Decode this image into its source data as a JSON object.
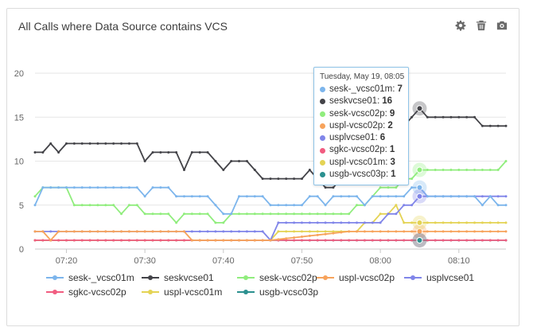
{
  "panel": {
    "title": "All Calls where Data Source contains VCS",
    "tools": [
      {
        "name": "gear-icon",
        "label": "settings"
      },
      {
        "name": "trash-icon",
        "label": "delete"
      },
      {
        "name": "camera-icon",
        "label": "snapshot"
      }
    ]
  },
  "tooltip": {
    "header": "Tuesday, May 19, 08:05",
    "rows": [
      {
        "name": "sesk-_vcsc01m:",
        "value": "7",
        "color": "#7cb5ec"
      },
      {
        "name": "seskvcse01:",
        "value": "16",
        "color": "#434348"
      },
      {
        "name": "sesk-vcsc02p:",
        "value": "9",
        "color": "#90ed7d"
      },
      {
        "name": "uspl-vcsc02p:",
        "value": "2",
        "color": "#f7a35c"
      },
      {
        "name": "usplvcse01:",
        "value": "6",
        "color": "#8085e9"
      },
      {
        "name": "sgkc-vcsc02p:",
        "value": "1",
        "color": "#f15c80"
      },
      {
        "name": "uspl-vcsc01m:",
        "value": "3",
        "color": "#e4d354"
      },
      {
        "name": "usgb-vcsc03p:",
        "value": "1",
        "color": "#2b908f"
      }
    ]
  },
  "chart_data": {
    "type": "line",
    "x": [
      "07:16",
      "07:17",
      "07:18",
      "07:19",
      "07:20",
      "07:21",
      "07:22",
      "07:23",
      "07:24",
      "07:25",
      "07:26",
      "07:27",
      "07:28",
      "07:29",
      "07:30",
      "07:31",
      "07:32",
      "07:33",
      "07:34",
      "07:35",
      "07:36",
      "07:37",
      "07:38",
      "07:39",
      "07:40",
      "07:41",
      "07:42",
      "07:43",
      "07:44",
      "07:45",
      "07:46",
      "07:47",
      "07:48",
      "07:49",
      "07:50",
      "07:51",
      "07:52",
      "07:53",
      "07:54",
      "07:55",
      "07:56",
      "07:57",
      "07:58",
      "07:59",
      "08:00",
      "08:01",
      "08:02",
      "08:03",
      "08:04",
      "08:05",
      "08:06",
      "08:07",
      "08:08",
      "08:09",
      "08:10",
      "08:11",
      "08:12",
      "08:13",
      "08:14",
      "08:15",
      "08:16"
    ],
    "x_ticks": [
      "07:20",
      "07:30",
      "07:40",
      "07:50",
      "08:00",
      "08:10"
    ],
    "y_ticks": [
      0,
      5,
      10,
      15,
      20
    ],
    "ylim": [
      0,
      20
    ],
    "grid": true,
    "legend_position": "bottom",
    "highlight_index": 49,
    "series": [
      {
        "name": "sesk-_vcsc01m",
        "color": "#7cb5ec",
        "values": [
          5,
          7,
          7,
          7,
          7,
          7,
          7,
          7,
          7,
          7,
          7,
          7,
          7,
          7,
          6,
          7,
          7,
          7,
          6,
          6,
          6,
          6,
          6,
          5,
          4,
          4,
          6,
          6,
          6,
          6,
          5,
          5,
          5,
          5,
          5,
          6,
          6,
          5,
          6,
          6,
          6,
          6,
          5,
          6,
          6,
          6,
          6,
          6,
          7,
          7,
          6,
          6,
          6,
          6,
          6,
          6,
          6,
          5,
          6,
          5,
          5
        ]
      },
      {
        "name": "seskvcse01",
        "color": "#434348",
        "values": [
          11,
          11,
          12,
          11,
          12,
          12,
          12,
          12,
          12,
          12,
          12,
          12,
          12,
          12,
          10,
          11,
          11,
          11,
          11,
          9,
          11,
          11,
          11,
          10,
          9,
          10,
          10,
          10,
          9,
          8,
          8,
          8,
          8,
          8,
          8,
          9,
          8,
          7,
          7,
          8,
          9,
          10,
          11,
          12,
          13,
          14,
          15,
          14,
          15,
          16,
          15,
          15,
          15,
          15,
          15,
          15,
          15,
          14,
          14,
          14,
          14
        ]
      },
      {
        "name": "sesk-vcsc02p",
        "color": "#90ed7d",
        "values": [
          6,
          7,
          7,
          7,
          7,
          5,
          5,
          5,
          5,
          5,
          5,
          4,
          5,
          5,
          4,
          4,
          4,
          4,
          3,
          4,
          4,
          4,
          4,
          3,
          3,
          4,
          4,
          4,
          4,
          4,
          4,
          4,
          4,
          4,
          4,
          4,
          4,
          4,
          4,
          4,
          4,
          5,
          5,
          6,
          7,
          7,
          7,
          8,
          8,
          9,
          9,
          9,
          9,
          9,
          9,
          9,
          9,
          9,
          9,
          9,
          10
        ]
      },
      {
        "name": "uspl-vcsc02p",
        "color": "#f7a35c",
        "values": [
          2,
          2,
          1,
          2,
          2,
          2,
          2,
          2,
          2,
          2,
          2,
          2,
          2,
          2,
          2,
          2,
          2,
          2,
          2,
          2,
          1,
          1,
          1,
          1,
          1,
          1,
          1,
          1,
          1,
          1,
          1,
          1.1,
          1.2,
          1.3,
          1.4,
          1.5,
          1.6,
          1.7,
          1.8,
          1.9,
          2,
          2,
          2,
          2,
          2,
          2,
          2,
          2,
          2,
          2,
          2,
          2,
          2,
          2,
          2,
          2,
          2,
          2,
          2,
          2,
          2
        ]
      },
      {
        "name": "usplvcse01",
        "color": "#8085e9",
        "values": [
          2,
          2,
          2,
          2,
          2,
          2,
          2,
          2,
          2,
          2,
          2,
          2,
          2,
          2,
          2,
          2,
          2,
          2,
          2,
          2,
          2,
          2,
          2,
          2,
          2,
          2,
          2,
          2,
          2,
          2,
          1,
          3,
          3,
          3,
          3,
          3,
          3,
          3,
          3,
          3,
          3,
          3,
          3,
          3,
          3,
          4,
          4,
          5,
          5,
          6,
          6,
          6,
          6,
          6,
          6,
          6,
          6,
          6,
          6,
          6,
          6
        ]
      },
      {
        "name": "sgkc-vcsc02p",
        "color": "#f15c80",
        "values": [
          1,
          1,
          1,
          1,
          1,
          1,
          1,
          1,
          1,
          1,
          1,
          1,
          1,
          1,
          1,
          1,
          1,
          1,
          1,
          1,
          1,
          1,
          1,
          1,
          1,
          1,
          1,
          1,
          1,
          1,
          1,
          1,
          1,
          1,
          1,
          1,
          1,
          1,
          1,
          1,
          1,
          1,
          1,
          1,
          1,
          1,
          1,
          1,
          1,
          1,
          1,
          1,
          1,
          1,
          1,
          1,
          1,
          1,
          1,
          1,
          1
        ]
      },
      {
        "name": "uspl-vcsc01m",
        "color": "#e4d354",
        "values": [
          1,
          1,
          1,
          1,
          1,
          1,
          1,
          1,
          1,
          1,
          1,
          1,
          1,
          1,
          1,
          1,
          1,
          1,
          1,
          1,
          1,
          1,
          1,
          1,
          1,
          1,
          1,
          1,
          1,
          1,
          1,
          2,
          2,
          2,
          2,
          2,
          2,
          2,
          2,
          2,
          2,
          2,
          3,
          3,
          4,
          4,
          5,
          3,
          3,
          3,
          3,
          3,
          3,
          3,
          3,
          3,
          3,
          3,
          3,
          3,
          3
        ]
      },
      {
        "name": "usgb-vcsc03p",
        "color": "#2b908f",
        "values": [
          1,
          1,
          1,
          1,
          1,
          1,
          1,
          1,
          1,
          1,
          1,
          1,
          1,
          1,
          1,
          1,
          1,
          1,
          1,
          1,
          1,
          1,
          1,
          1,
          1,
          1,
          1,
          1,
          1,
          1,
          1,
          1,
          1,
          1,
          1,
          1,
          1,
          1,
          1,
          1,
          1,
          1,
          1,
          1,
          1,
          1,
          1,
          1,
          1,
          1,
          1,
          1,
          1,
          1,
          1,
          1,
          1,
          1,
          1,
          1,
          1
        ]
      }
    ]
  }
}
